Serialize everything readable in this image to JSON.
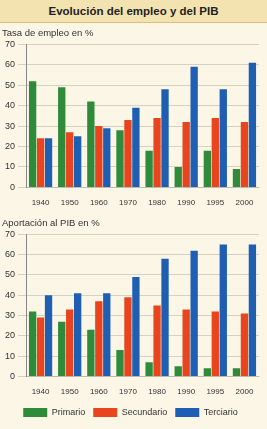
{
  "title": "Evolución del empleo y del PIB",
  "chart_data": [
    {
      "type": "bar",
      "title": "Tasa de empleo en %",
      "categories": [
        "1940",
        "1950",
        "1960",
        "1970",
        "1980",
        "1990",
        "1995",
        "2000"
      ],
      "series": [
        {
          "name": "Primario",
          "color": "#2e8b3a",
          "values": [
            52,
            49,
            42,
            28,
            18,
            10,
            18,
            9
          ]
        },
        {
          "name": "Secundario",
          "color": "#e8451e",
          "values": [
            24,
            27,
            30,
            33,
            34,
            32,
            34,
            32
          ]
        },
        {
          "name": "Terciario",
          "color": "#1f5fb3",
          "values": [
            24,
            25,
            29,
            39,
            48,
            59,
            48,
            61
          ]
        }
      ],
      "ylim": [
        0,
        70
      ],
      "yticks": [
        0,
        10,
        20,
        30,
        40,
        50,
        60,
        70
      ],
      "grid": true
    },
    {
      "type": "bar",
      "title": "Aportación al PIB en %",
      "categories": [
        "1940",
        "1950",
        "1960",
        "1970",
        "1980",
        "1990",
        "1995",
        "2000"
      ],
      "series": [
        {
          "name": "Primario",
          "color": "#2e8b3a",
          "values": [
            32,
            27,
            23,
            13,
            7,
            5,
            4,
            4
          ]
        },
        {
          "name": "Secundario",
          "color": "#e8451e",
          "values": [
            29,
            33,
            37,
            39,
            35,
            33,
            32,
            31
          ]
        },
        {
          "name": "Terciario",
          "color": "#1f5fb3",
          "values": [
            40,
            41,
            41,
            49,
            58,
            62,
            65,
            65
          ]
        }
      ],
      "ylim": [
        0,
        70
      ],
      "yticks": [
        0,
        10,
        20,
        30,
        40,
        50,
        60,
        70
      ],
      "grid": true,
      "legend": "bottom"
    }
  ]
}
